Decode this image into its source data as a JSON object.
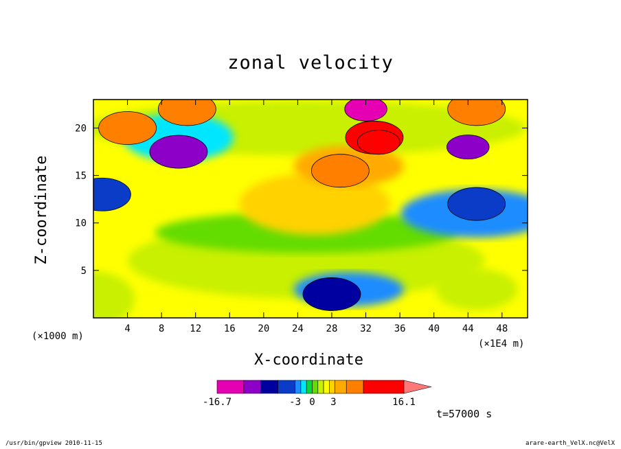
{
  "chart_data": {
    "type": "heatmap",
    "title": "zonal velocity",
    "xlabel": "X-coordinate",
    "ylabel": "Z-coordinate",
    "x_unit_left": "(×1000 m)",
    "x_unit_right": "(×1E4 m)",
    "x_ticks": [
      "4",
      "8",
      "12",
      "16",
      "20",
      "24",
      "28",
      "32",
      "36",
      "40",
      "44",
      "48"
    ],
    "x_tick_values": [
      4,
      8,
      12,
      16,
      20,
      24,
      28,
      32,
      36,
      40,
      44,
      48
    ],
    "y_ticks": [
      "5",
      "10",
      "15",
      "20"
    ],
    "y_tick_values": [
      5,
      10,
      15,
      20
    ],
    "xlim": [
      0,
      51
    ],
    "ylim": [
      0,
      23
    ],
    "colorbar": {
      "min_label": "-16.7",
      "mid_labels": [
        "-3",
        "0",
        "3"
      ],
      "max_label": "16.1",
      "levels": [
        -16.7,
        -12,
        -9,
        -6,
        -3,
        -2,
        -1,
        0,
        1,
        2,
        3,
        4,
        6,
        9,
        16.1
      ],
      "colors": [
        "#e600b4",
        "#8c00c8",
        "#0000a0",
        "#0a3cc8",
        "#1f8cff",
        "#00e6ff",
        "#00dc3c",
        "#64dc00",
        "#c8f000",
        "#ffff00",
        "#ffd200",
        "#ffaa00",
        "#ff8000",
        "#ff0000",
        "#ff7878"
      ]
    },
    "fields": [
      {
        "name": "upper-jet",
        "x": 33,
        "y": 19,
        "value": 10
      },
      {
        "name": "upper-jet-core",
        "x": 33.5,
        "y": 18.5,
        "value": 14
      },
      {
        "name": "mid-jet",
        "x": 29,
        "y": 15.5,
        "value": 7
      },
      {
        "name": "left-positive",
        "x": 4,
        "y": 20,
        "value": 6
      },
      {
        "name": "right-positive",
        "x": 45,
        "y": 22,
        "value": 7
      },
      {
        "name": "top-positive",
        "x": 11,
        "y": 22,
        "value": 6
      },
      {
        "name": "negative-1",
        "x": 10,
        "y": 17.5,
        "value": -10
      },
      {
        "name": "negative-2",
        "x": 44,
        "y": 18,
        "value": -11
      },
      {
        "name": "negative-3",
        "x": 32,
        "y": 22,
        "value": -14
      },
      {
        "name": "negative-4",
        "x": 28,
        "y": 2.5,
        "value": -9
      },
      {
        "name": "negative-5",
        "x": 45,
        "y": 12,
        "value": -5
      },
      {
        "name": "negative-left",
        "x": 1,
        "y": 13,
        "value": -6
      }
    ]
  },
  "time_label": "t=57000 s",
  "footer": {
    "left": "/usr/bin/gpview  2010-11-15",
    "right": "arare-earth_VelX.nc@VelX"
  }
}
